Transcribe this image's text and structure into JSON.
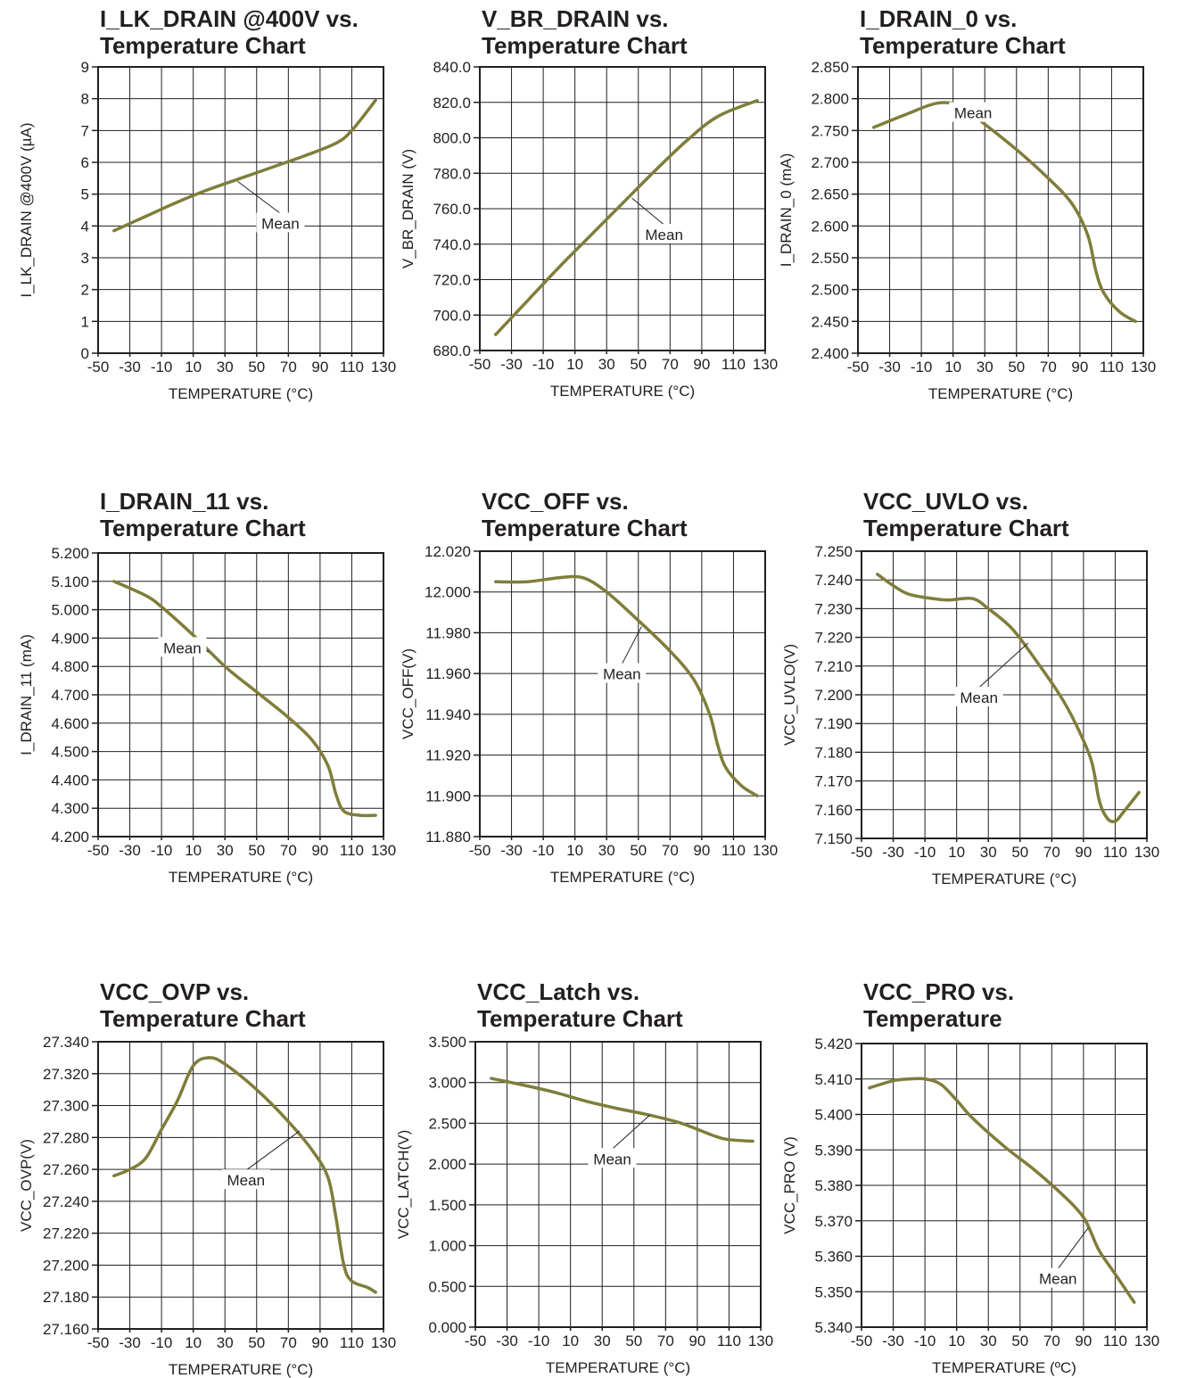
{
  "page": {
    "background": "#ffffff",
    "curve_color": "#7f7d3a",
    "ink_color": "#231f20"
  },
  "chart_data": [
    {
      "type": "line",
      "title": [
        "I_LK_DRAIN @400V vs.",
        "Temperature Chart"
      ],
      "xlabel": "TEMPERATURE (°C)",
      "ylabel": "I_LK_DRAIN @400V (µA)",
      "xlim": [
        -50,
        130
      ],
      "ylim": [
        0,
        9
      ],
      "x_ticks": [
        "-50",
        "-30",
        "-10",
        "10",
        "30",
        "50",
        "70",
        "90",
        "110",
        "130"
      ],
      "y_ticks": [
        "0",
        "1",
        "2",
        "3",
        "4",
        "5",
        "6",
        "7",
        "8",
        "9"
      ],
      "grid": true,
      "series": [
        {
          "name": "Mean",
          "x": [
            -40,
            -20,
            0,
            20,
            40,
            60,
            80,
            100,
            110,
            125
          ],
          "y": [
            3.85,
            4.3,
            4.75,
            5.15,
            5.5,
            5.85,
            6.2,
            6.6,
            7.0,
            7.95
          ]
        }
      ],
      "annotation": {
        "text": "Mean",
        "x": 38,
        "y": 5.4
      }
    },
    {
      "type": "line",
      "title": [
        "V_BR_DRAIN vs.",
        "Temperature Chart"
      ],
      "xlabel": "TEMPERATURE (°C)",
      "ylabel": "V_BR_DRAIN (V)",
      "xlim": [
        -50,
        130
      ],
      "ylim": [
        680,
        840
      ],
      "x_ticks": [
        "-50",
        "-30",
        "-10",
        "10",
        "30",
        "50",
        "70",
        "90",
        "110",
        "130"
      ],
      "y_ticks": [
        "680.0",
        "700.0",
        "720.0",
        "740.0",
        "760.0",
        "780.0",
        "800.0",
        "820.0",
        "840.0"
      ],
      "grid": true,
      "series": [
        {
          "name": "Mean",
          "x": [
            -40,
            -20,
            0,
            20,
            40,
            60,
            80,
            100,
            125
          ],
          "y": [
            689,
            708,
            727,
            745,
            763,
            781,
            798,
            812,
            821
          ]
        }
      ],
      "annotation": {
        "text": "Mean",
        "x": 46,
        "y": 766
      }
    },
    {
      "type": "line",
      "title": [
        "I_DRAIN_0 vs.",
        "Temperature Chart"
      ],
      "xlabel": "TEMPERATURE (°C)",
      "ylabel": "I_DRAIN_0 (mA)",
      "xlim": [
        -50,
        130
      ],
      "ylim": [
        2.4,
        2.85
      ],
      "x_ticks": [
        "-50",
        "-30",
        "-10",
        "10",
        "30",
        "50",
        "70",
        "90",
        "110",
        "130"
      ],
      "y_ticks": [
        "2.400",
        "2.450",
        "2.500",
        "2.550",
        "2.600",
        "2.650",
        "2.700",
        "2.750",
        "2.800",
        "2.850"
      ],
      "grid": true,
      "series": [
        {
          "name": "Mean",
          "x": [
            -40,
            -20,
            0,
            15,
            30,
            50,
            70,
            85,
            95,
            100,
            105,
            115,
            125
          ],
          "y": [
            2.755,
            2.775,
            2.793,
            2.788,
            2.76,
            2.72,
            2.675,
            2.635,
            2.585,
            2.53,
            2.495,
            2.465,
            2.45
          ]
        }
      ],
      "annotation": {
        "text": "Mean",
        "x": 26,
        "y": 2.765
      }
    },
    {
      "type": "line",
      "title": [
        "I_DRAIN_11 vs.",
        "Temperature Chart"
      ],
      "xlabel": "TEMPERATURE (°C)",
      "ylabel": "I_DRAIN_11 (mA)",
      "xlim": [
        -50,
        130
      ],
      "ylim": [
        4.2,
        5.2
      ],
      "x_ticks": [
        "-50",
        "-30",
        "-10",
        "10",
        "30",
        "50",
        "70",
        "90",
        "110",
        "130"
      ],
      "y_ticks": [
        "4.200",
        "4.300",
        "4.400",
        "4.500",
        "4.600",
        "4.700",
        "4.800",
        "4.900",
        "5.000",
        "5.100",
        "5.200"
      ],
      "grid": true,
      "series": [
        {
          "name": "Mean",
          "x": [
            -40,
            -20,
            -10,
            10,
            30,
            50,
            70,
            85,
            95,
            100,
            105,
            115,
            125
          ],
          "y": [
            5.1,
            5.05,
            5.01,
            4.91,
            4.8,
            4.71,
            4.62,
            4.54,
            4.45,
            4.35,
            4.29,
            4.275,
            4.275
          ]
        }
      ],
      "annotation": {
        "text": "Mean",
        "x": 20,
        "y": 4.85
      }
    },
    {
      "type": "line",
      "title": [
        "VCC_OFF vs.",
        "Temperature Chart"
      ],
      "xlabel": "TEMPERATURE (°C)",
      "ylabel": "VCC_OFF(V)",
      "xlim": [
        -50,
        130
      ],
      "ylim": [
        11.88,
        12.02
      ],
      "x_ticks": [
        "-50",
        "-30",
        "-10",
        "10",
        "30",
        "50",
        "70",
        "90",
        "110",
        "130"
      ],
      "y_ticks": [
        "11.880",
        "11.900",
        "11.920",
        "11.940",
        "11.960",
        "11.980",
        "12.000",
        "12.020"
      ],
      "grid": true,
      "series": [
        {
          "name": "Mean",
          "x": [
            -40,
            -20,
            0,
            15,
            30,
            50,
            70,
            85,
            95,
            100,
            105,
            115,
            125
          ],
          "y": [
            12.005,
            12.005,
            12.007,
            12.007,
            12.0,
            11.986,
            11.971,
            11.957,
            11.94,
            11.925,
            11.914,
            11.905,
            11.9
          ]
        }
      ],
      "annotation": {
        "text": "Mean",
        "x": 52,
        "y": 11.983
      }
    },
    {
      "type": "line",
      "title": [
        "VCC_UVLO vs.",
        "Temperature Chart"
      ],
      "xlabel": "TEMPERATURE (°C)",
      "ylabel": "VCC_UVLO(V)",
      "xlim": [
        -50,
        130
      ],
      "ylim": [
        7.15,
        7.25
      ],
      "x_ticks": [
        "-50",
        "-30",
        "-10",
        "10",
        "30",
        "50",
        "70",
        "90",
        "110",
        "130"
      ],
      "y_ticks": [
        "7.150",
        "7.160",
        "7.170",
        "7.180",
        "7.190",
        "7.200",
        "7.210",
        "7.220",
        "7.230",
        "7.240",
        "7.250"
      ],
      "grid": true,
      "series": [
        {
          "name": "Mean",
          "x": [
            -40,
            -30,
            -20,
            -5,
            5,
            20,
            30,
            45,
            60,
            75,
            85,
            95,
            100,
            105,
            110,
            115,
            125
          ],
          "y": [
            7.242,
            7.238,
            7.235,
            7.2335,
            7.233,
            7.2335,
            7.23,
            7.223,
            7.212,
            7.2,
            7.19,
            7.177,
            7.163,
            7.157,
            7.156,
            7.159,
            7.166
          ]
        }
      ],
      "annotation": {
        "text": "Mean",
        "x": 55,
        "y": 7.218
      }
    },
    {
      "type": "line",
      "title": [
        "VCC_OVP vs.",
        "Temperature Chart"
      ],
      "xlabel": "TEMPERATURE (°C)",
      "ylabel": "VCC_OVP(V)",
      "xlim": [
        -50,
        130
      ],
      "ylim": [
        27.16,
        27.34
      ],
      "x_ticks": [
        "-50",
        "-30",
        "-10",
        "10",
        "30",
        "50",
        "70",
        "90",
        "110",
        "130"
      ],
      "y_ticks": [
        "27.160",
        "27.180",
        "27.200",
        "27.220",
        "27.240",
        "27.260",
        "27.280",
        "27.300",
        "27.320",
        "27.340"
      ],
      "grid": true,
      "series": [
        {
          "name": "Mean",
          "x": [
            -40,
            -30,
            -20,
            -10,
            0,
            10,
            20,
            30,
            50,
            70,
            85,
            95,
            100,
            105,
            110,
            120,
            125
          ],
          "y": [
            27.256,
            27.26,
            27.267,
            27.285,
            27.303,
            27.325,
            27.33,
            27.326,
            27.31,
            27.29,
            27.272,
            27.255,
            27.23,
            27.2,
            27.19,
            27.186,
            27.183
          ]
        }
      ],
      "annotation": {
        "text": "Mean",
        "x": 77,
        "y": 27.284
      }
    },
    {
      "type": "line",
      "title": [
        "VCC_Latch vs.",
        "Temperature Chart"
      ],
      "xlabel": "TEMPERATURE (°C)",
      "ylabel": "VCC_LATCH(V)",
      "xlim": [
        -50,
        130
      ],
      "ylim": [
        0,
        3.5
      ],
      "x_ticks": [
        "-50",
        "-30",
        "-10",
        "10",
        "30",
        "50",
        "70",
        "90",
        "110",
        "130"
      ],
      "y_ticks": [
        "0.000",
        "0.500",
        "1.000",
        "1.500",
        "2.000",
        "2.500",
        "3.000",
        "3.500"
      ],
      "grid": true,
      "series": [
        {
          "name": "Mean",
          "x": [
            -40,
            -20,
            0,
            20,
            40,
            60,
            80,
            100,
            110,
            125
          ],
          "y": [
            3.05,
            2.97,
            2.88,
            2.77,
            2.68,
            2.6,
            2.5,
            2.35,
            2.3,
            2.28
          ]
        }
      ],
      "annotation": {
        "text": "Mean",
        "x": 60,
        "y": 2.6
      }
    },
    {
      "type": "line",
      "title": [
        "VCC_PRO vs.",
        "Temperature"
      ],
      "xlabel": "TEMPERATURE (ºC)",
      "ylabel": "VCC_PRO (V)",
      "xlim": [
        -50,
        130
      ],
      "ylim": [
        5.34,
        5.42
      ],
      "x_ticks": [
        "-50",
        "-30",
        "-10",
        "10",
        "30",
        "50",
        "70",
        "90",
        "110",
        "130"
      ],
      "y_ticks": [
        "5.340",
        "5.350",
        "5.360",
        "5.370",
        "5.380",
        "5.390",
        "5.400",
        "5.410",
        "5.420"
      ],
      "grid": true,
      "series": [
        {
          "name": "Mean",
          "x": [
            -45,
            -30,
            -20,
            -10,
            0,
            10,
            20,
            40,
            60,
            80,
            90,
            95,
            100,
            110,
            122
          ],
          "y": [
            5.4075,
            5.4095,
            5.41,
            5.41,
            5.4085,
            5.404,
            5.399,
            5.391,
            5.384,
            5.376,
            5.371,
            5.3665,
            5.3615,
            5.355,
            5.347
          ]
        }
      ],
      "annotation": {
        "text": "Mean",
        "x": 93,
        "y": 5.368
      }
    }
  ]
}
